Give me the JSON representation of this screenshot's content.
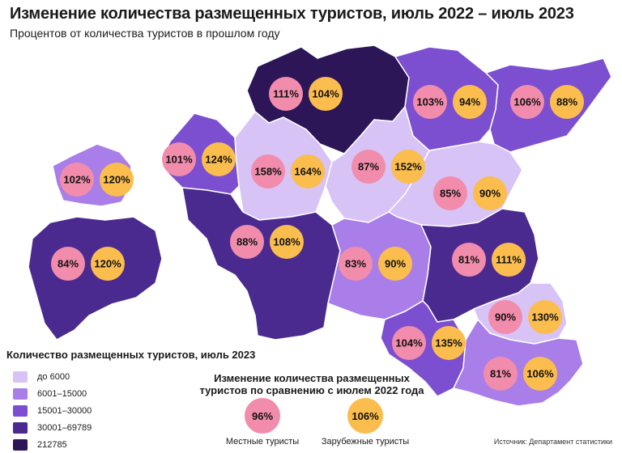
{
  "header": {
    "title": "Изменение количества размещенных туристов, июль 2022 – июль 2023",
    "subtitle": "Процентов от количества туристов в прошлом году"
  },
  "colors": {
    "class1": "#d7c3f6",
    "class2": "#a97ee8",
    "class3": "#7b4fd0",
    "class4": "#4b2a8f",
    "class5": "#2c1658",
    "local": "#f28cac",
    "foreign": "#fbbd4d",
    "border": "#ffffff"
  },
  "regions": [
    {
      "id": "harju",
      "class": 5,
      "local": "111%",
      "foreign": "104%"
    },
    {
      "id": "laane-viru",
      "class": 3,
      "local": "103%",
      "foreign": "94%"
    },
    {
      "id": "ida-viru",
      "class": 3,
      "local": "106%",
      "foreign": "88%"
    },
    {
      "id": "hiiu",
      "class": 2,
      "local": "102%",
      "foreign": "120%"
    },
    {
      "id": "laane",
      "class": 3,
      "local": "101%",
      "foreign": "124%"
    },
    {
      "id": "rapla",
      "class": 1,
      "local": "158%",
      "foreign": "164%"
    },
    {
      "id": "jarva",
      "class": 1,
      "local": "87%",
      "foreign": "152%"
    },
    {
      "id": "jogeva",
      "class": 1,
      "local": "85%",
      "foreign": "90%"
    },
    {
      "id": "saare",
      "class": 4,
      "local": "84%",
      "foreign": "120%"
    },
    {
      "id": "parnu",
      "class": 4,
      "local": "88%",
      "foreign": "108%"
    },
    {
      "id": "viljandi",
      "class": 2,
      "local": "83%",
      "foreign": "90%"
    },
    {
      "id": "tartu",
      "class": 4,
      "local": "81%",
      "foreign": "111%"
    },
    {
      "id": "polva",
      "class": 1,
      "local": "90%",
      "foreign": "130%"
    },
    {
      "id": "valga",
      "class": 3,
      "local": "104%",
      "foreign": "135%"
    },
    {
      "id": "voru",
      "class": 2,
      "local": "81%",
      "foreign": "106%"
    }
  ],
  "legend": {
    "title": "Количество размещенных туристов, июль 2023",
    "items": [
      {
        "label": "до 6000",
        "color": "#d7c3f6"
      },
      {
        "label": "6001–15000",
        "color": "#a97ee8"
      },
      {
        "label": "15001–30000",
        "color": "#7b4fd0"
      },
      {
        "label": "30001–69789",
        "color": "#4b2a8f"
      },
      {
        "label": "212785",
        "color": "#2c1658"
      }
    ]
  },
  "change_legend": {
    "title": "Изменение количества размещенных туристов по сравнению с июлем 2022 года",
    "local": {
      "value": "96%",
      "label": "Местные туристы"
    },
    "foreign": {
      "value": "106%",
      "label": "Зарубежные туристы"
    }
  },
  "source": "Источник: Департамент статистики"
}
